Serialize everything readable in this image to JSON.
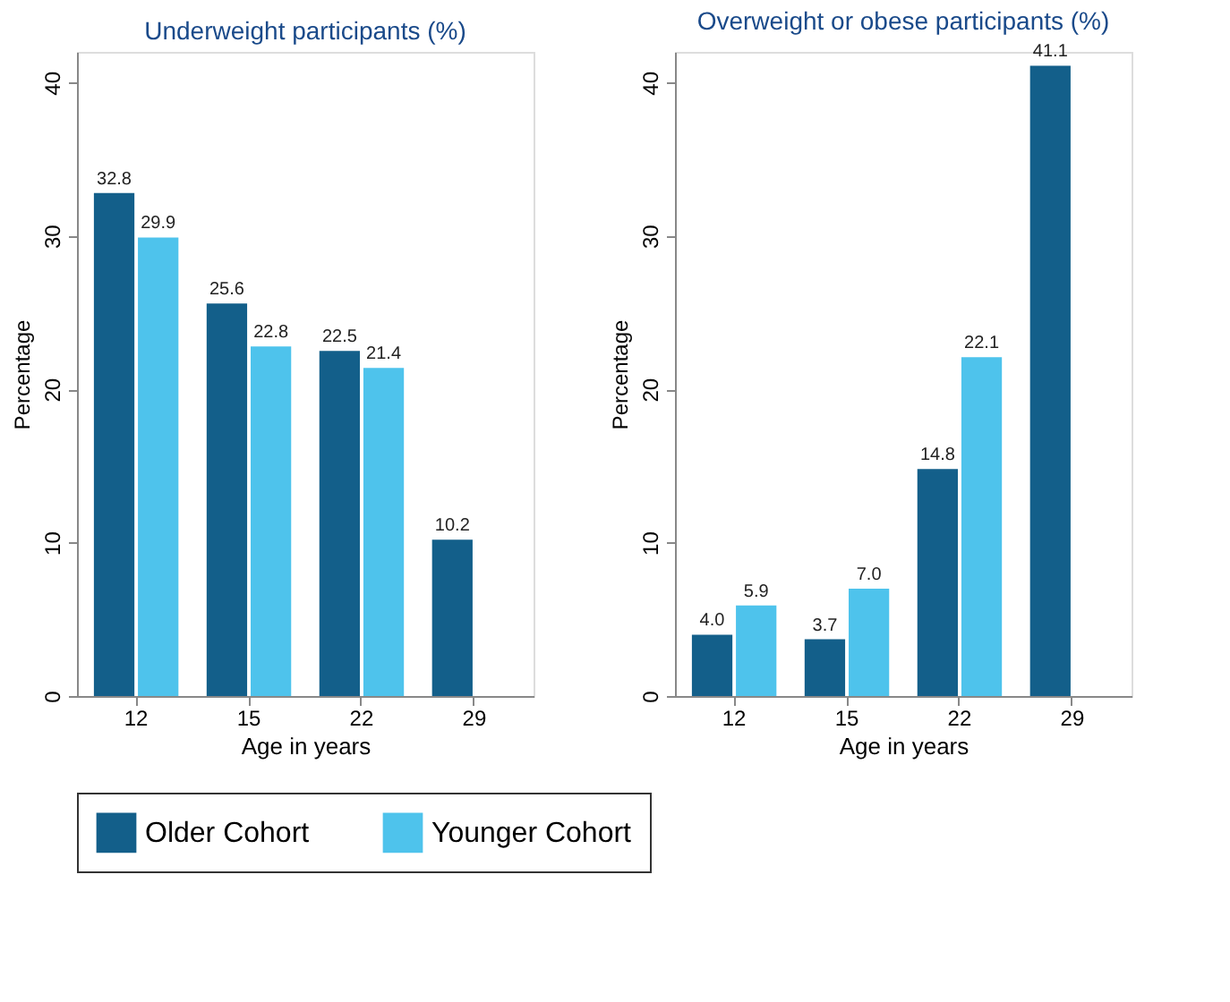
{
  "chart_data": [
    {
      "type": "bar",
      "title": "Underweight participants (%)",
      "xlabel": "Age in years",
      "ylabel": "Percentage",
      "categories": [
        "12",
        "15",
        "22",
        "29"
      ],
      "ylim": [
        0,
        42
      ],
      "yticks": [
        0,
        10,
        20,
        30,
        40
      ],
      "grid": false,
      "legend": "bottom",
      "series": [
        {
          "name": "Older Cohort",
          "color": "#135f8a",
          "values": [
            32.8,
            25.6,
            22.5,
            10.2
          ],
          "value_labels": [
            "32.8",
            "25.6",
            "22.5",
            "10.2"
          ]
        },
        {
          "name": "Younger Cohort",
          "color": "#4ec3ec",
          "values": [
            29.9,
            22.8,
            21.4,
            null
          ],
          "value_labels": [
            "29.9",
            "22.8",
            "21.4",
            null
          ]
        }
      ]
    },
    {
      "type": "bar",
      "title": "Overweight or obese participants (%)",
      "xlabel": "Age in years",
      "ylabel": "Percentage",
      "categories": [
        "12",
        "15",
        "22",
        "29"
      ],
      "ylim": [
        0,
        42
      ],
      "yticks": [
        0,
        10,
        20,
        30,
        40
      ],
      "grid": false,
      "series": [
        {
          "name": "Older Cohort",
          "color": "#135f8a",
          "values": [
            4.0,
            3.7,
            14.8,
            41.1
          ],
          "value_labels": [
            "4.0",
            "3.7",
            "14.8",
            "41.1"
          ]
        },
        {
          "name": "Younger Cohort",
          "color": "#4ec3ec",
          "values": [
            5.9,
            7.0,
            22.1,
            null
          ],
          "value_labels": [
            "5.9",
            "7.0",
            "22.1",
            null
          ]
        }
      ]
    }
  ]
}
